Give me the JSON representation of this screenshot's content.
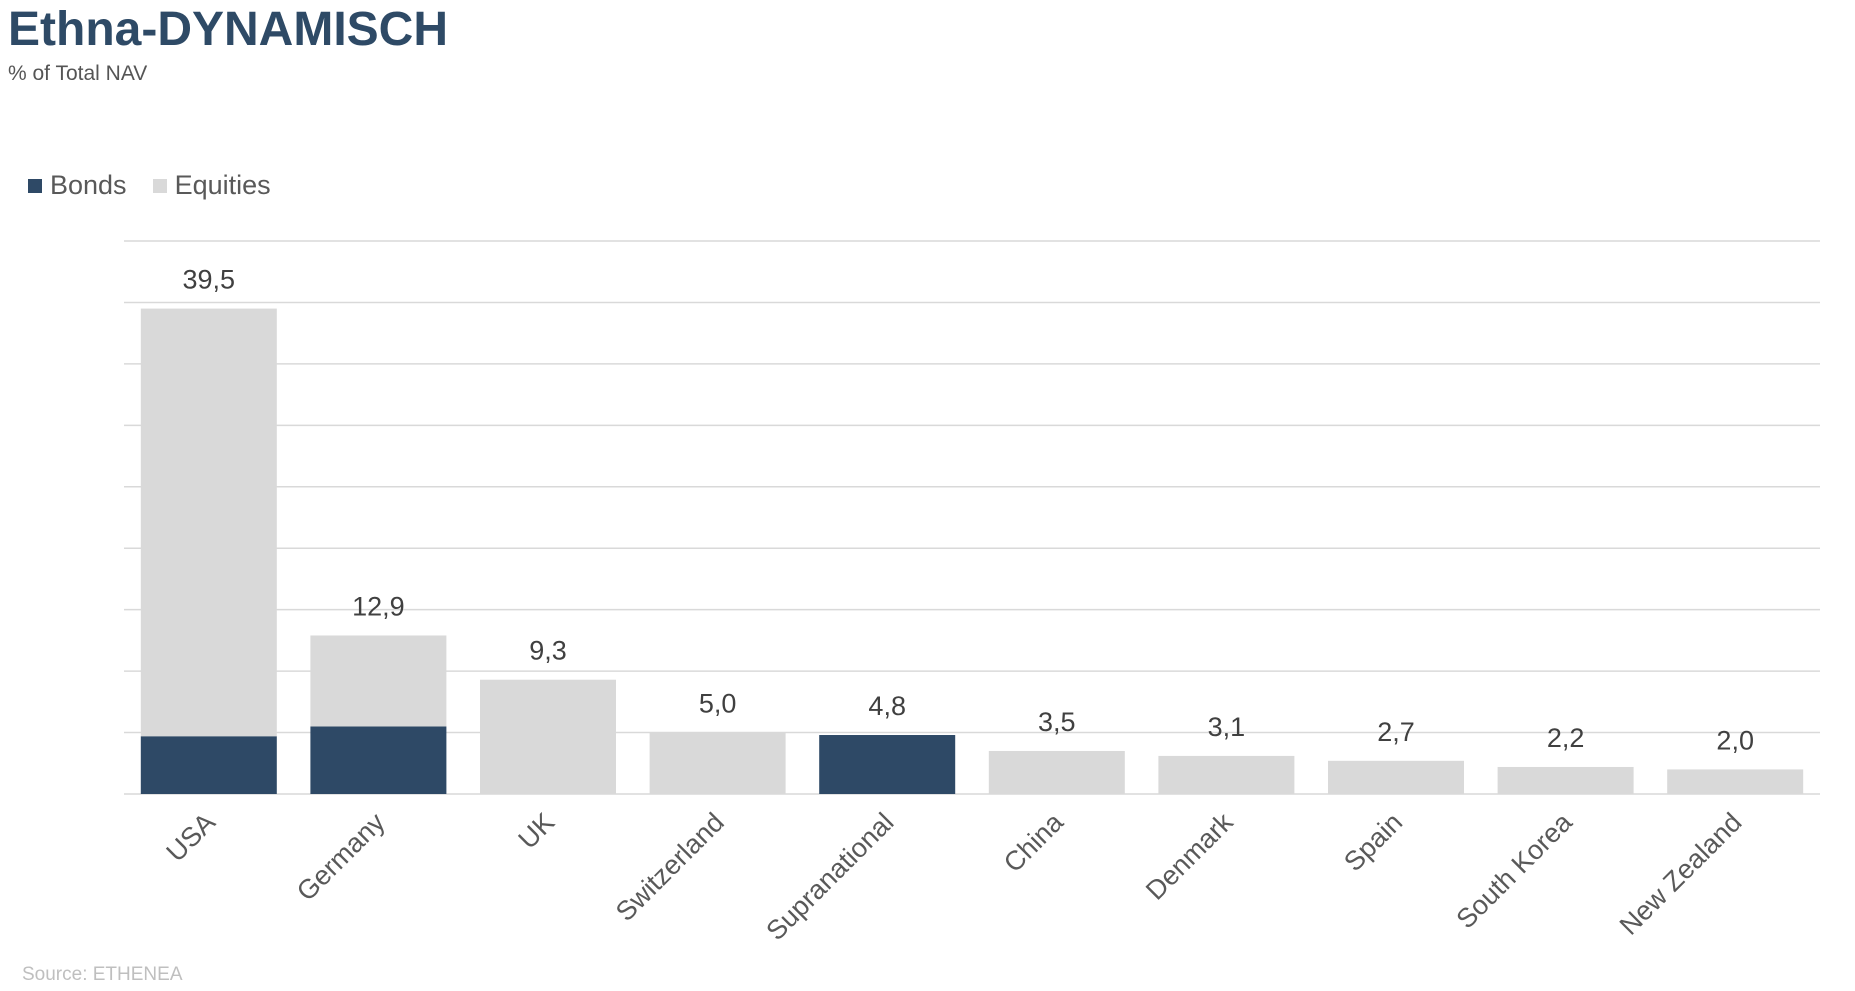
{
  "title": "Ethna-DYNAMISCH",
  "subtitle": "% of Total NAV",
  "source": "Source: ETHENEA",
  "colors": {
    "bonds": "#2e4966",
    "equities": "#d9d9d9",
    "grid": "#d9d9d9",
    "label": "#404040",
    "axis_label": "#595959"
  },
  "legend": [
    {
      "name": "Bonds",
      "color": "#2e4966"
    },
    {
      "name": "Equities",
      "color": "#d9d9d9"
    }
  ],
  "chart_data": {
    "type": "bar",
    "stacked": true,
    "categories": [
      "USA",
      "Germany",
      "UK",
      "Switzerland",
      "Supranational",
      "China",
      "Denmark",
      "Spain",
      "South Korea",
      "New Zealand"
    ],
    "series": [
      {
        "name": "Bonds",
        "values": [
          4.7,
          5.5,
          0,
          0,
          4.8,
          0,
          0,
          0,
          0,
          0
        ]
      },
      {
        "name": "Equities",
        "values": [
          34.8,
          7.4,
          9.3,
          5.0,
          0,
          3.5,
          3.1,
          2.7,
          2.2,
          2.0
        ]
      }
    ],
    "totals": [
      "39,5",
      "12,9",
      "9,3",
      "5,0",
      "4,8",
      "3,5",
      "3,1",
      "2,7",
      "2,2",
      "2,0"
    ],
    "ylim": [
      0,
      45
    ],
    "grid": true,
    "legend_position": "top-left"
  }
}
